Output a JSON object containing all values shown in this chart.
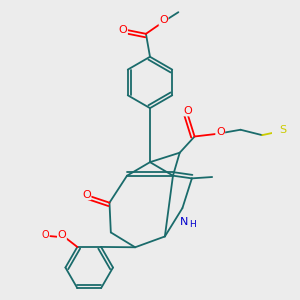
{
  "background_color": "#ececec",
  "bond_color": "#1a6b6b",
  "atom_colors": {
    "O": "#ff0000",
    "N": "#0000cc",
    "S": "#cccc00",
    "C": "#1a6b6b"
  },
  "figsize": [
    3.0,
    3.0
  ],
  "dpi": 100
}
